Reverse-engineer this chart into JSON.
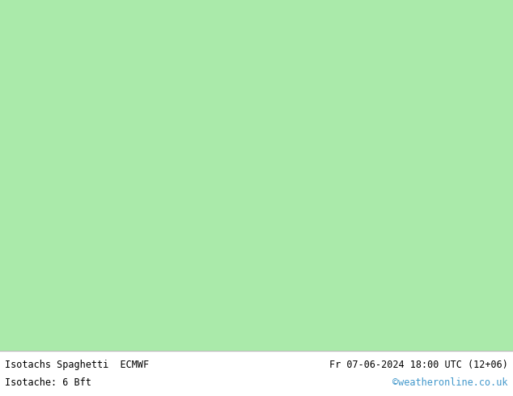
{
  "title_left": "Isotachs Spaghetti  ECMWF",
  "title_right": "Fr 07-06-2024 18:00 UTC (12+06)",
  "subtitle_left": "Isotache: 6 Bft",
  "subtitle_right": "©weatheronline.co.uk",
  "land_color": "#aaeaaa",
  "sea_color": "#e8e8e8",
  "border_color": "#aaaaaa",
  "coast_color": "#999999",
  "text_color": "#000000",
  "link_color": "#4499cc",
  "footer_bg": "#d0d0d0",
  "fig_width": 6.34,
  "fig_height": 4.9,
  "dpi": 100,
  "map_extent": [
    -25,
    45,
    25,
    72
  ],
  "spaghetti_colors": [
    "#ff0000",
    "#00cc00",
    "#0000ff",
    "#ff00ff",
    "#00cccc",
    "#ff8800",
    "#cc00cc",
    "#00ff88",
    "#ff0044",
    "#aaff00",
    "#0044ff",
    "#ff4400",
    "#00ffcc",
    "#8800ff",
    "#ffcc00",
    "#00ff00",
    "#ff0088",
    "#0088ff",
    "#88ff00",
    "#ff8800"
  ],
  "spaghetti_lw": 0.6,
  "spaghetti_alpha": 0.9
}
